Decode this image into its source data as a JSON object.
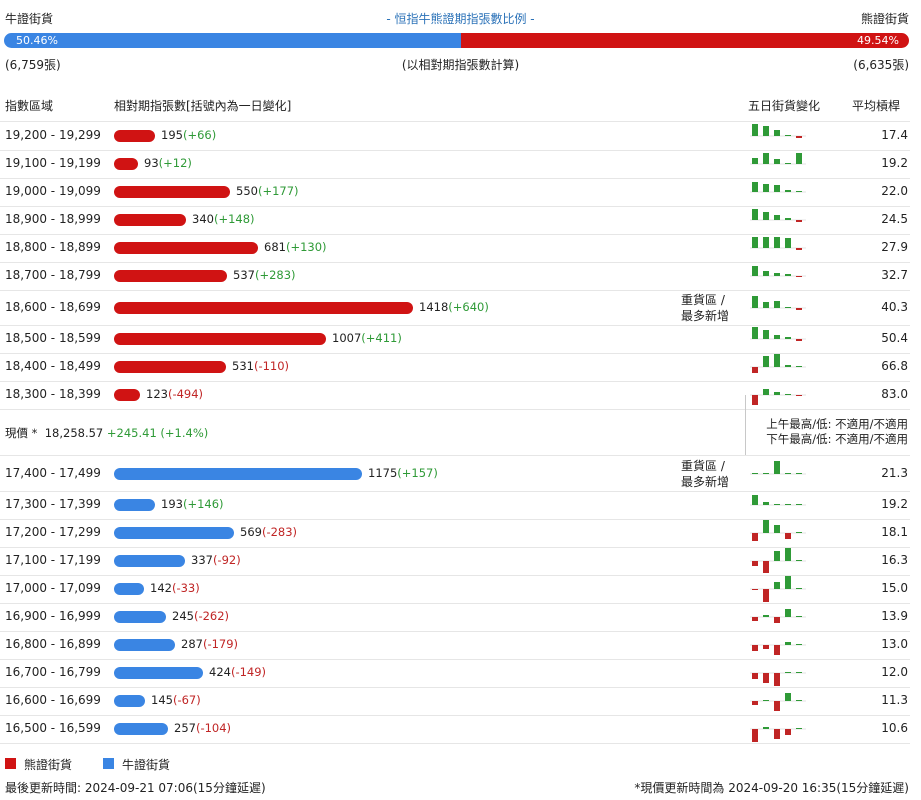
{
  "header": {
    "bull_label": "牛證街貨",
    "title": "- 恒指牛熊證期指張數比例 -",
    "bear_label": "熊證街貨",
    "bull_pct_text": "50.46%",
    "bear_pct_text": "49.54%",
    "bull_pct": 50.46,
    "bull_count": "(6,759張)",
    "note": "(以相對期指張數計算)",
    "bear_count": "(6,635張)"
  },
  "columns": {
    "range": "指數區域",
    "contracts": "相對期指張數[括號內為一日變化]",
    "five_day": "五日街貨變化",
    "leverage": "平均槓桿"
  },
  "price_info": {
    "label": "現價 *",
    "price": "18,258.57",
    "change": "+245.41 (+1.4%)",
    "am_high_low": "上午最高/低: 不適用/不適用",
    "pm_high_low": "下午最高/低: 不適用/不適用"
  },
  "legend": {
    "bear": "熊證街貨",
    "bull": "牛證街貨"
  },
  "footer": {
    "left": "最後更新時間: 2024-09-21 07:06(15分鐘延遲)",
    "right": "*現價更新時間為 2024-09-20 16:35(15分鐘延遲)"
  },
  "colors": {
    "bear": "#d01313",
    "bull": "#3a85e3",
    "up": "#2f9a37",
    "down": "#c02525"
  },
  "chart_data": {
    "type": "bar",
    "orientation": "horizontal",
    "bear_rows": [
      {
        "range": "19,200 - 19,299",
        "value": 195,
        "change": "+66",
        "avg": "17.4",
        "note": "",
        "five_day": [
          12,
          10,
          6,
          0,
          -2
        ]
      },
      {
        "range": "19,100 - 19,199",
        "value": 93,
        "change": "+12",
        "avg": "19.2",
        "note": "",
        "five_day": [
          6,
          11,
          5,
          0,
          11
        ]
      },
      {
        "range": "19,000 - 19,099",
        "value": 550,
        "change": "+177",
        "avg": "22.0",
        "note": "",
        "five_day": [
          10,
          8,
          7,
          2,
          0
        ]
      },
      {
        "range": "18,900 - 18,999",
        "value": 340,
        "change": "+148",
        "avg": "24.5",
        "note": "",
        "five_day": [
          11,
          8,
          5,
          2,
          -2
        ]
      },
      {
        "range": "18,800 - 18,899",
        "value": 681,
        "change": "+130",
        "avg": "27.9",
        "note": "",
        "five_day": [
          11,
          11,
          11,
          10,
          -2
        ]
      },
      {
        "range": "18,700 - 18,799",
        "value": 537,
        "change": "+283",
        "avg": "32.7",
        "note": "",
        "five_day": [
          10,
          5,
          3,
          2,
          -1
        ]
      },
      {
        "range": "18,600 - 18,699",
        "value": 1418,
        "change": "+640",
        "avg": "40.3",
        "note": "重貨區 / 最多新增",
        "five_day": [
          12,
          6,
          7,
          0,
          -2
        ]
      },
      {
        "range": "18,500 - 18,599",
        "value": 1007,
        "change": "+411",
        "avg": "50.4",
        "note": "",
        "five_day": [
          12,
          9,
          4,
          2,
          -2
        ]
      },
      {
        "range": "18,400 - 18,499",
        "value": 531,
        "change": "-110",
        "avg": "66.8",
        "note": "",
        "five_day": [
          -6,
          11,
          13,
          2,
          0
        ]
      },
      {
        "range": "18,300 - 18,399",
        "value": 123,
        "change": "-494",
        "avg": "83.0",
        "note": "",
        "five_day": [
          -10,
          6,
          3,
          1,
          -1
        ]
      }
    ],
    "bull_rows": [
      {
        "range": "17,400 - 17,499",
        "value": 1175,
        "change": "+157",
        "avg": "21.3",
        "note": "重貨區 / 最多新增",
        "five_day": [
          1,
          0,
          13,
          0,
          0
        ]
      },
      {
        "range": "17,300 - 17,399",
        "value": 193,
        "change": "+146",
        "avg": "19.2",
        "note": "",
        "five_day": [
          10,
          3,
          0,
          0,
          0
        ]
      },
      {
        "range": "17,200 - 17,299",
        "value": 569,
        "change": "-283",
        "avg": "18.1",
        "note": "",
        "five_day": [
          -8,
          13,
          8,
          -6,
          0
        ]
      },
      {
        "range": "17,100 - 17,199",
        "value": 337,
        "change": "-92",
        "avg": "16.3",
        "note": "",
        "five_day": [
          -5,
          -12,
          10,
          13,
          0
        ]
      },
      {
        "range": "17,000 - 17,099",
        "value": 142,
        "change": "-33",
        "avg": "15.0",
        "note": "",
        "five_day": [
          -1,
          -13,
          7,
          13,
          0
        ]
      },
      {
        "range": "16,900 - 16,999",
        "value": 245,
        "change": "-262",
        "avg": "13.9",
        "note": "",
        "five_day": [
          -4,
          2,
          -6,
          8,
          0
        ]
      },
      {
        "range": "16,800 - 16,899",
        "value": 287,
        "change": "-179",
        "avg": "13.0",
        "note": "",
        "five_day": [
          -6,
          -4,
          -10,
          3,
          0
        ]
      },
      {
        "range": "16,700 - 16,799",
        "value": 424,
        "change": "-149",
        "avg": "12.0",
        "note": "",
        "five_day": [
          -6,
          -10,
          -13,
          1,
          0
        ]
      },
      {
        "range": "16,600 - 16,699",
        "value": 145,
        "change": "-67",
        "avg": "11.3",
        "note": "",
        "five_day": [
          -4,
          0,
          -10,
          8,
          0
        ]
      },
      {
        "range": "16,500 - 16,599",
        "value": 257,
        "change": "-104",
        "avg": "10.6",
        "note": "",
        "five_day": [
          -13,
          2,
          -10,
          -6,
          0
        ]
      }
    ]
  }
}
